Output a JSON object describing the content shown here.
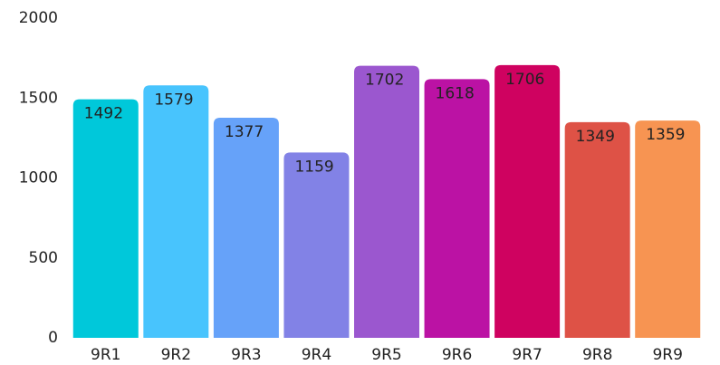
{
  "chart_data": {
    "type": "bar",
    "categories": [
      "9R1",
      "9R2",
      "9R3",
      "9R4",
      "9R5",
      "9R6",
      "9R7",
      "9R8",
      "9R9"
    ],
    "values": [
      1492,
      1579,
      1377,
      1159,
      1702,
      1618,
      1706,
      1349,
      1359
    ],
    "colors": [
      "#00c8da",
      "#48c4fd",
      "#66a2f9",
      "#8282e6",
      "#9b57cf",
      "#bb12a4",
      "#cf0260",
      "#de5246",
      "#f79452"
    ],
    "label_colors": [
      "#111111",
      "#111111",
      "#111111",
      "#ffffff",
      "#ffffff",
      "#ffffff",
      "#ffffff",
      "#ffffff",
      "#111111"
    ],
    "ylim": [
      0,
      2000
    ],
    "yticks": [
      0,
      500,
      1000,
      1500,
      2000
    ],
    "grid": false
  }
}
